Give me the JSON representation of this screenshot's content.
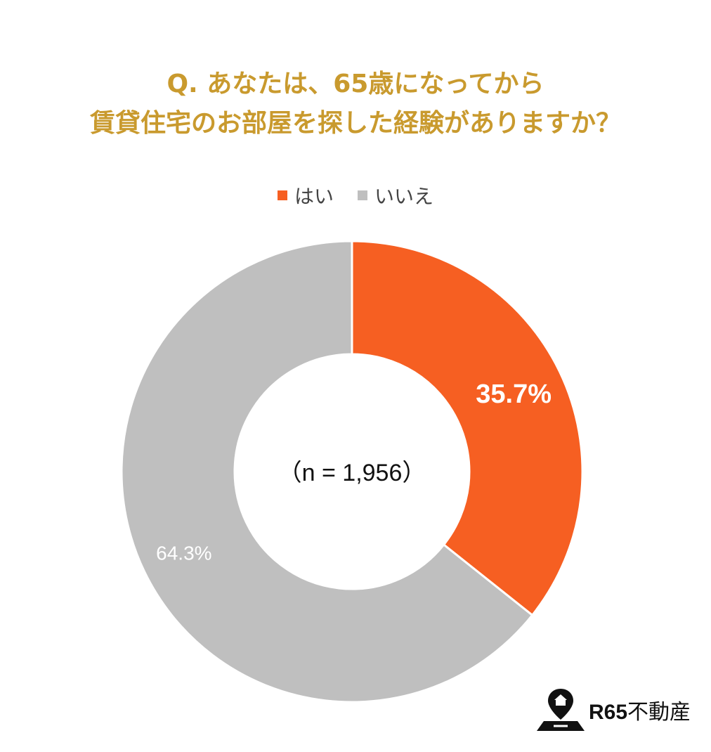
{
  "title": {
    "line1": "Q. あなたは、65歳になってから",
    "line2": "賃貸住宅のお部屋を探した経験がありますか？"
  },
  "colors": {
    "title": "#c99a2e",
    "yes": "#f65f22",
    "no": "#bfbfbf"
  },
  "chart_data": {
    "type": "pie",
    "variant": "donut",
    "title": "Q. あなたは、65歳になってから賃貸住宅のお部屋を探した経験がありますか？",
    "legend_position": "top",
    "categories": [
      "はい",
      "いいえ"
    ],
    "values": [
      35.7,
      64.3
    ],
    "labels": [
      "35.7%",
      "64.3%"
    ],
    "center_label": "（n = 1,956）",
    "colors": [
      "#f65f22",
      "#bfbfbf"
    ]
  },
  "logo": {
    "brand_number": "R65",
    "brand_name": "不動産"
  }
}
